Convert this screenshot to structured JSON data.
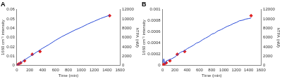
{
  "chart_data": [
    {
      "type": "line",
      "title": "A",
      "x_label": "Time (min)",
      "y_label": "1660 cm⁻¹ intensity",
      "y2_label": "hTPA (nM)",
      "xlim": [
        0,
        1600
      ],
      "xticks": [
        0,
        200,
        400,
        600,
        800,
        1000,
        1200,
        1400,
        1600
      ],
      "ylim": [
        0,
        0.06
      ],
      "yticks": [
        0,
        0.01,
        0.02,
        0.03,
        0.04,
        0.05,
        0.06
      ],
      "y2lim": [
        0,
        12000
      ],
      "y2ticks": [
        0,
        2000,
        4000,
        6000,
        8000,
        10000,
        12000
      ],
      "grid": false,
      "series": [
        {
          "type": "line",
          "color": "#2a4bd7",
          "marker": "none",
          "line_style": "solid",
          "x": [
            0,
            60,
            120,
            200,
            300,
            400,
            500,
            600,
            700,
            800,
            900,
            1000,
            1100,
            1200,
            1300,
            1440
          ],
          "values": [
            0,
            0.003,
            0.006,
            0.0095,
            0.014,
            0.0185,
            0.0225,
            0.027,
            0.031,
            0.0345,
            0.038,
            0.041,
            0.0445,
            0.0475,
            0.0505,
            0.054
          ]
        },
        {
          "type": "scatter",
          "color": "#e02020",
          "marker": "diamond",
          "axis": "y2",
          "x": [
            0,
            15,
            30,
            60,
            120,
            240,
            360,
            1440
          ],
          "values": [
            0,
            150,
            300,
            550,
            1000,
            2400,
            3000,
            10700
          ]
        }
      ]
    },
    {
      "type": "line",
      "title": "B",
      "x_label": "Time (min)",
      "y_label": "1660 cm⁻¹ intensity",
      "y2_label": "hTPA (nM)",
      "xlim": [
        0,
        1600
      ],
      "xticks": [
        0,
        200,
        400,
        600,
        800,
        1000,
        1200,
        1400,
        1600
      ],
      "ylim": [
        0,
        0.001
      ],
      "yticks": [
        0,
        0.0002,
        0.0004,
        0.0006,
        0.0008,
        0.001
      ],
      "y2lim": [
        0,
        12000
      ],
      "y2ticks": [
        0,
        2000,
        4000,
        6000,
        8000,
        10000,
        12000
      ],
      "grid": false,
      "series": [
        {
          "type": "line",
          "color": "#2a4bd7",
          "marker": "none",
          "line_style": "solid",
          "x": [
            0,
            10,
            20,
            40,
            60,
            100,
            150,
            200,
            250,
            300,
            350,
            400,
            450,
            500,
            550,
            600,
            650,
            700,
            750,
            800,
            850,
            900,
            950,
            1000,
            1050,
            1100,
            1150,
            1200,
            1250,
            1300,
            1350,
            1400,
            1440
          ],
          "values": [
            0.0001,
            5e-05,
            0.00012,
            3e-05,
            8e-05,
            0.0001,
            0.00012,
            0.00015,
            0.0002,
            0.00024,
            0.00026,
            0.0003,
            0.00033,
            0.00036,
            0.0004,
            0.00042,
            0.00046,
            0.00049,
            0.00052,
            0.00056,
            0.00058,
            0.00062,
            0.00064,
            0.00067,
            0.0007,
            0.00072,
            0.00075,
            0.00077,
            0.0008,
            0.00081,
            0.00083,
            0.00084,
            0.00085
          ]
        },
        {
          "type": "scatter",
          "color": "#e02020",
          "marker": "diamond",
          "axis": "y2",
          "x": [
            0,
            15,
            30,
            60,
            120,
            240,
            360,
            1440
          ],
          "values": [
            0,
            150,
            300,
            550,
            1000,
            2400,
            3000,
            10700
          ]
        }
      ]
    }
  ]
}
